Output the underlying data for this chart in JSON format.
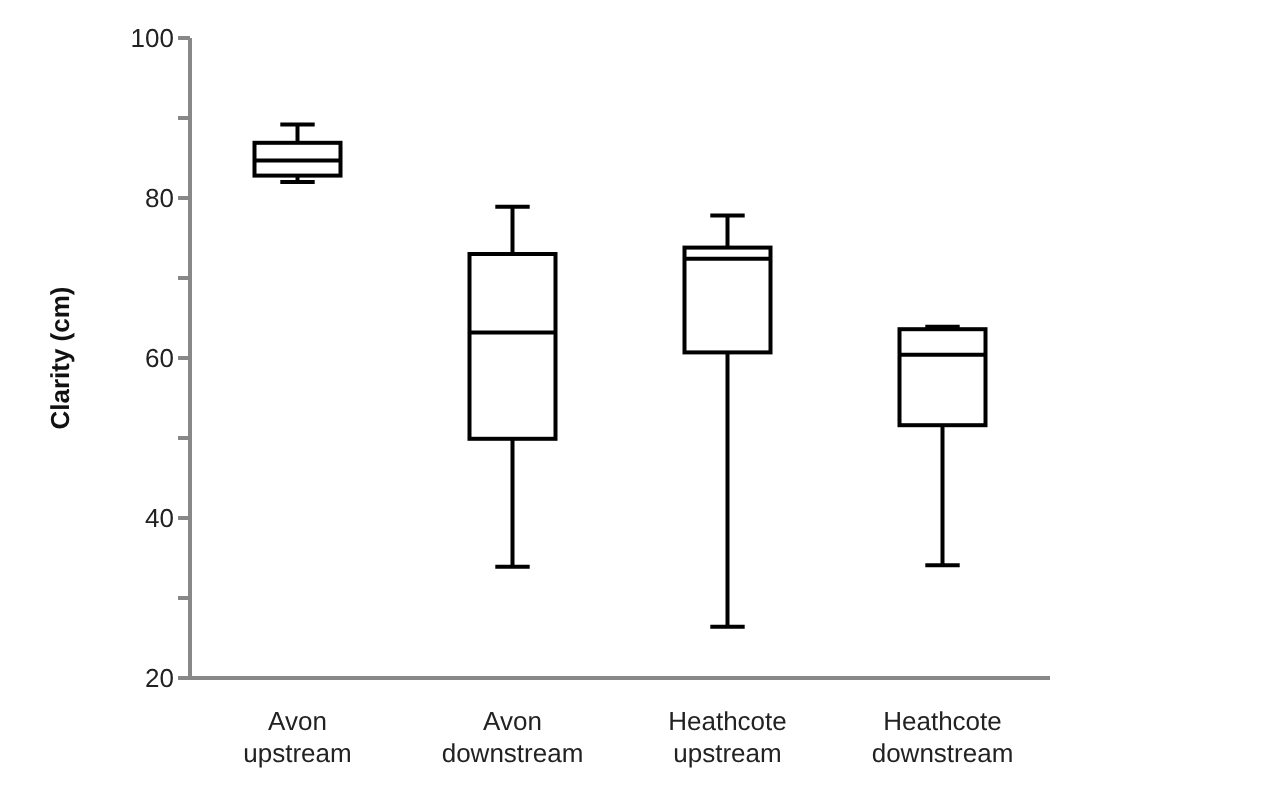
{
  "chart_data": {
    "type": "box",
    "ylabel": "Clarity (cm)",
    "categories": [
      "Avon upstream",
      "Avon downstream",
      "Heathcote upstream",
      "Heathcote downstream"
    ],
    "color": "#000000",
    "boxes": [
      {
        "low": 82,
        "q1": 82.8,
        "median": 84.7,
        "q3": 86.9,
        "high": 89.2
      },
      {
        "low": 33.9,
        "q1": 49.9,
        "median": 63.2,
        "q3": 73,
        "high": 78.9
      },
      {
        "low": 26.4,
        "q1": 60.7,
        "median": 72.4,
        "q3": 73.8,
        "high": 77.8
      },
      {
        "low": 34.1,
        "q1": 51.6,
        "median": 60.4,
        "q3": 63.6,
        "high": 63.9
      }
    ],
    "ylim": [
      20,
      100
    ],
    "yticks": [
      20,
      {
        "value": 30,
        "label": null
      },
      40,
      {
        "value": 50,
        "label": null
      },
      60,
      {
        "value": 70,
        "label": null
      },
      80,
      {
        "value": 90,
        "label": null
      },
      100
    ],
    "grid": false,
    "legend": false
  }
}
